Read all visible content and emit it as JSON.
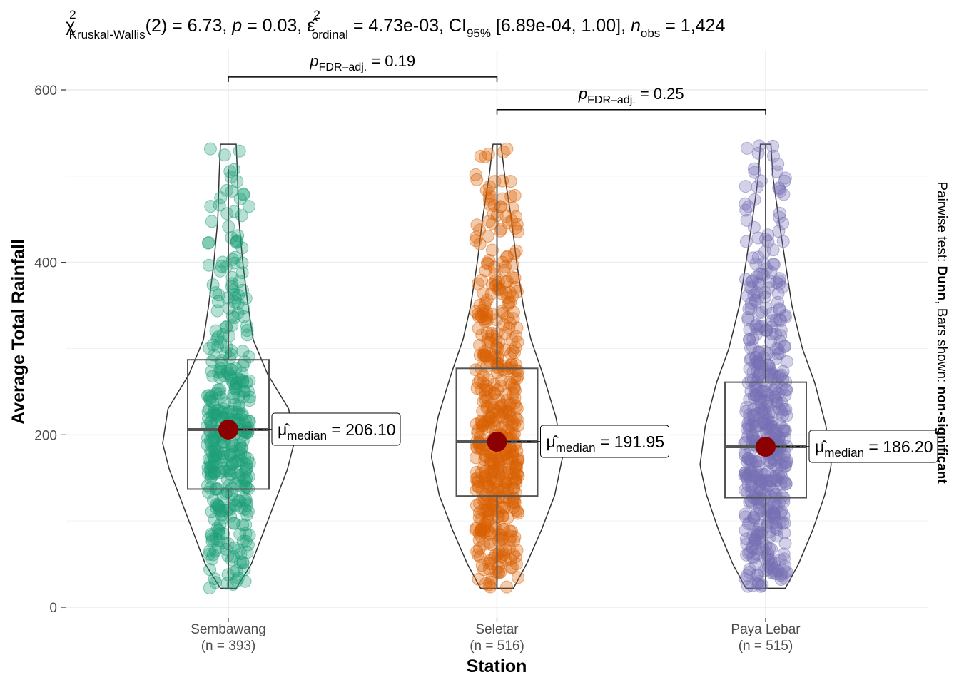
{
  "chart_data": {
    "type": "violin-box-scatter",
    "title": {
      "chi": "χ",
      "chi_sup": "2",
      "chi_sub": "Kruskal-Wallis",
      "part1": "(2) = 6.73, ",
      "p": "p",
      "part2": " = 0.03, ",
      "eps": "ε̂",
      "eps_sup": "2",
      "eps_sub": "ordinal",
      "part3": " = 4.73e-03, CI",
      "ci_sub": "95%",
      "part4": " [6.89e-04, 1.00], ",
      "n": "n",
      "n_sub": "obs",
      "part5": " = 1,424"
    },
    "xlabel": "Station",
    "ylabel": "Average Total Rainfall",
    "ylim": [
      0,
      620
    ],
    "yticks": [
      0,
      200,
      400,
      600
    ],
    "ytick_labels": [
      "0",
      "200",
      "400",
      "600"
    ],
    "caption": {
      "prefix": "Pairwise test: ",
      "test": "Dunn",
      "mid": ", Bars shown: ",
      "shown": "non-significant"
    },
    "groups": [
      {
        "name": "Sembawang",
        "n_label": "(n = 393)",
        "n": 393,
        "color": "#1B9E77",
        "median": 206.1,
        "q1": 137,
        "q3": 287,
        "whisker_low": 22,
        "whisker_high": 508,
        "min": 22,
        "max": 537,
        "median_label": {
          "mu": "μ̂",
          "sub": "median",
          "value": " = 206.10"
        },
        "density": [
          [
            22,
            0.12
          ],
          [
            50,
            0.35
          ],
          [
            80,
            0.5
          ],
          [
            120,
            0.7
          ],
          [
            160,
            0.9
          ],
          [
            190,
            1.0
          ],
          [
            230,
            0.92
          ],
          [
            270,
            0.6
          ],
          [
            310,
            0.38
          ],
          [
            350,
            0.3
          ],
          [
            400,
            0.22
          ],
          [
            450,
            0.16
          ],
          [
            500,
            0.14
          ],
          [
            537,
            0.12
          ]
        ]
      },
      {
        "name": "Seletar",
        "n_label": "(n = 516)",
        "n": 516,
        "color": "#D95F02",
        "median": 191.95,
        "q1": 129,
        "q3": 277,
        "whisker_low": 22,
        "whisker_high": 537,
        "min": 22,
        "max": 537,
        "median_label": {
          "mu": "μ̂",
          "sub": "median",
          "value": " = 191.95"
        },
        "density": [
          [
            22,
            0.25
          ],
          [
            50,
            0.45
          ],
          [
            90,
            0.68
          ],
          [
            130,
            0.88
          ],
          [
            175,
            1.0
          ],
          [
            220,
            0.9
          ],
          [
            270,
            0.7
          ],
          [
            310,
            0.52
          ],
          [
            350,
            0.4
          ],
          [
            400,
            0.3
          ],
          [
            450,
            0.22
          ],
          [
            500,
            0.12
          ],
          [
            537,
            0.06
          ]
        ]
      },
      {
        "name": "Paya Lebar",
        "n_label": "(n = 515)",
        "n": 515,
        "color": "#7570B3",
        "median": 186.2,
        "q1": 127,
        "q3": 261,
        "whisker_low": 22,
        "whisker_high": 537,
        "min": 22,
        "max": 537,
        "median_label": {
          "mu": "μ̂",
          "sub": "median",
          "value": " = 186.20"
        },
        "density": [
          [
            22,
            0.3
          ],
          [
            50,
            0.5
          ],
          [
            90,
            0.72
          ],
          [
            130,
            0.9
          ],
          [
            165,
            1.0
          ],
          [
            210,
            0.92
          ],
          [
            260,
            0.75
          ],
          [
            300,
            0.56
          ],
          [
            350,
            0.4
          ],
          [
            400,
            0.3
          ],
          [
            450,
            0.2
          ],
          [
            500,
            0.11
          ],
          [
            537,
            0.08
          ]
        ]
      }
    ],
    "comparisons": [
      {
        "from": 0,
        "to": 1,
        "y": 615,
        "label_p": "p",
        "label_sub": "FDR–adj.",
        "label_value": " = 0.19"
      },
      {
        "from": 1,
        "to": 2,
        "y": 577,
        "label_p": "p",
        "label_sub": "FDR–adj.",
        "label_value": " = 0.25"
      }
    ]
  }
}
